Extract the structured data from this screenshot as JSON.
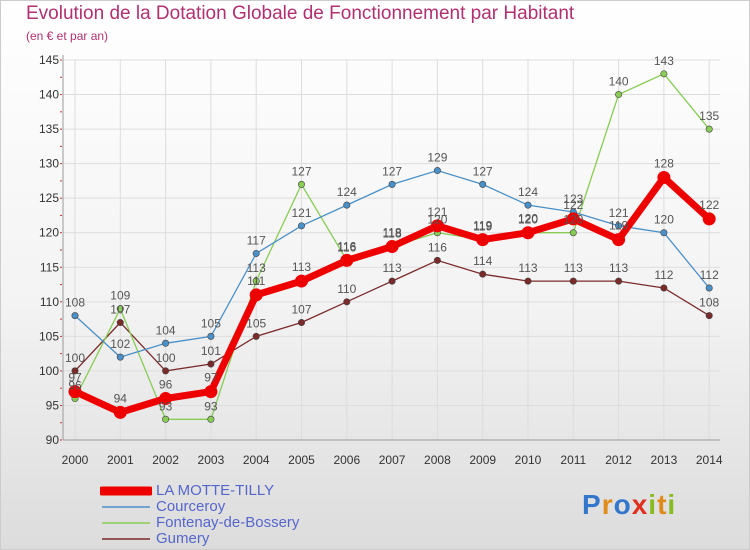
{
  "header": {
    "title": "Evolution de la Dotation Globale de Fonctionnement par Habitant",
    "subtitle": "(en € et par an)"
  },
  "chart_data": {
    "type": "line",
    "title": "Evolution de la Dotation Globale de Fonctionnement par Habitant",
    "subtitle": "(en € et par an)",
    "xlabel": "",
    "ylabel": "",
    "categories": [
      "2000",
      "2001",
      "2002",
      "2003",
      "2004",
      "2005",
      "2006",
      "2007",
      "2008",
      "2009",
      "2010",
      "2011",
      "2012",
      "2013",
      "2014"
    ],
    "ylim": [
      90,
      145
    ],
    "yticks": [
      90,
      95,
      100,
      105,
      110,
      115,
      120,
      125,
      130,
      135,
      140,
      145
    ],
    "grid": true,
    "legend_position": "bottom-left",
    "series": [
      {
        "name": "Gumery",
        "color": "#7b2a2a",
        "values": [
          100,
          107,
          100,
          101,
          105,
          107,
          110,
          113,
          116,
          114,
          113,
          113,
          113,
          112,
          108
        ],
        "labels": [
          "100",
          "107",
          "100",
          "101",
          "105",
          "107",
          "110",
          "113",
          "116",
          "114",
          "113",
          "113",
          "113",
          "112",
          "108"
        ]
      },
      {
        "name": "Fontenay-de-Bossery",
        "color": "#88cc55",
        "values": [
          96,
          109,
          93,
          93,
          113,
          127,
          116,
          118,
          120,
          119,
          120,
          120,
          140,
          143,
          135
        ],
        "labels": [
          "96",
          "109",
          "93",
          "93",
          "113",
          "127",
          "116",
          "118",
          "120",
          "119",
          "120",
          "120",
          "140",
          "143",
          "135"
        ]
      },
      {
        "name": "Courceroy",
        "color": "#4a90c8",
        "values": [
          108,
          102,
          104,
          105,
          117,
          121,
          124,
          127,
          129,
          127,
          124,
          123,
          121,
          120,
          112
        ],
        "labels": [
          "108",
          "102",
          "104",
          "105",
          "117",
          "121",
          "124",
          "127",
          "129",
          "127",
          "124",
          "123",
          "121",
          "120",
          "112"
        ]
      },
      {
        "name": "LA MOTTE-TILLY",
        "color": "#ee0000",
        "values": [
          97,
          94,
          96,
          97,
          111,
          113,
          116,
          118,
          121,
          119,
          120,
          122,
          119,
          128,
          122
        ],
        "labels": [
          "97",
          "94",
          "96",
          "97",
          "111",
          "113",
          "116",
          "118",
          "121",
          "119",
          "120",
          "122",
          "119",
          "128",
          "122"
        ]
      }
    ]
  },
  "legend": {
    "items": [
      {
        "name": "LA MOTTE-TILLY",
        "color": "#ee0000"
      },
      {
        "name": "Courceroy",
        "color": "#4a90c8"
      },
      {
        "name": "Fontenay-de-Bossery",
        "color": "#88cc55"
      },
      {
        "name": "Gumery",
        "color": "#7b2a2a"
      }
    ]
  },
  "logo": {
    "letters": [
      "P",
      "r",
      "o",
      "x",
      "i",
      "t",
      "i"
    ],
    "colors": [
      "#3377cc",
      "#e08a1a",
      "#3377cc",
      "#e03020",
      "#88bb22",
      "#e08a1a",
      "#88bb22"
    ]
  }
}
